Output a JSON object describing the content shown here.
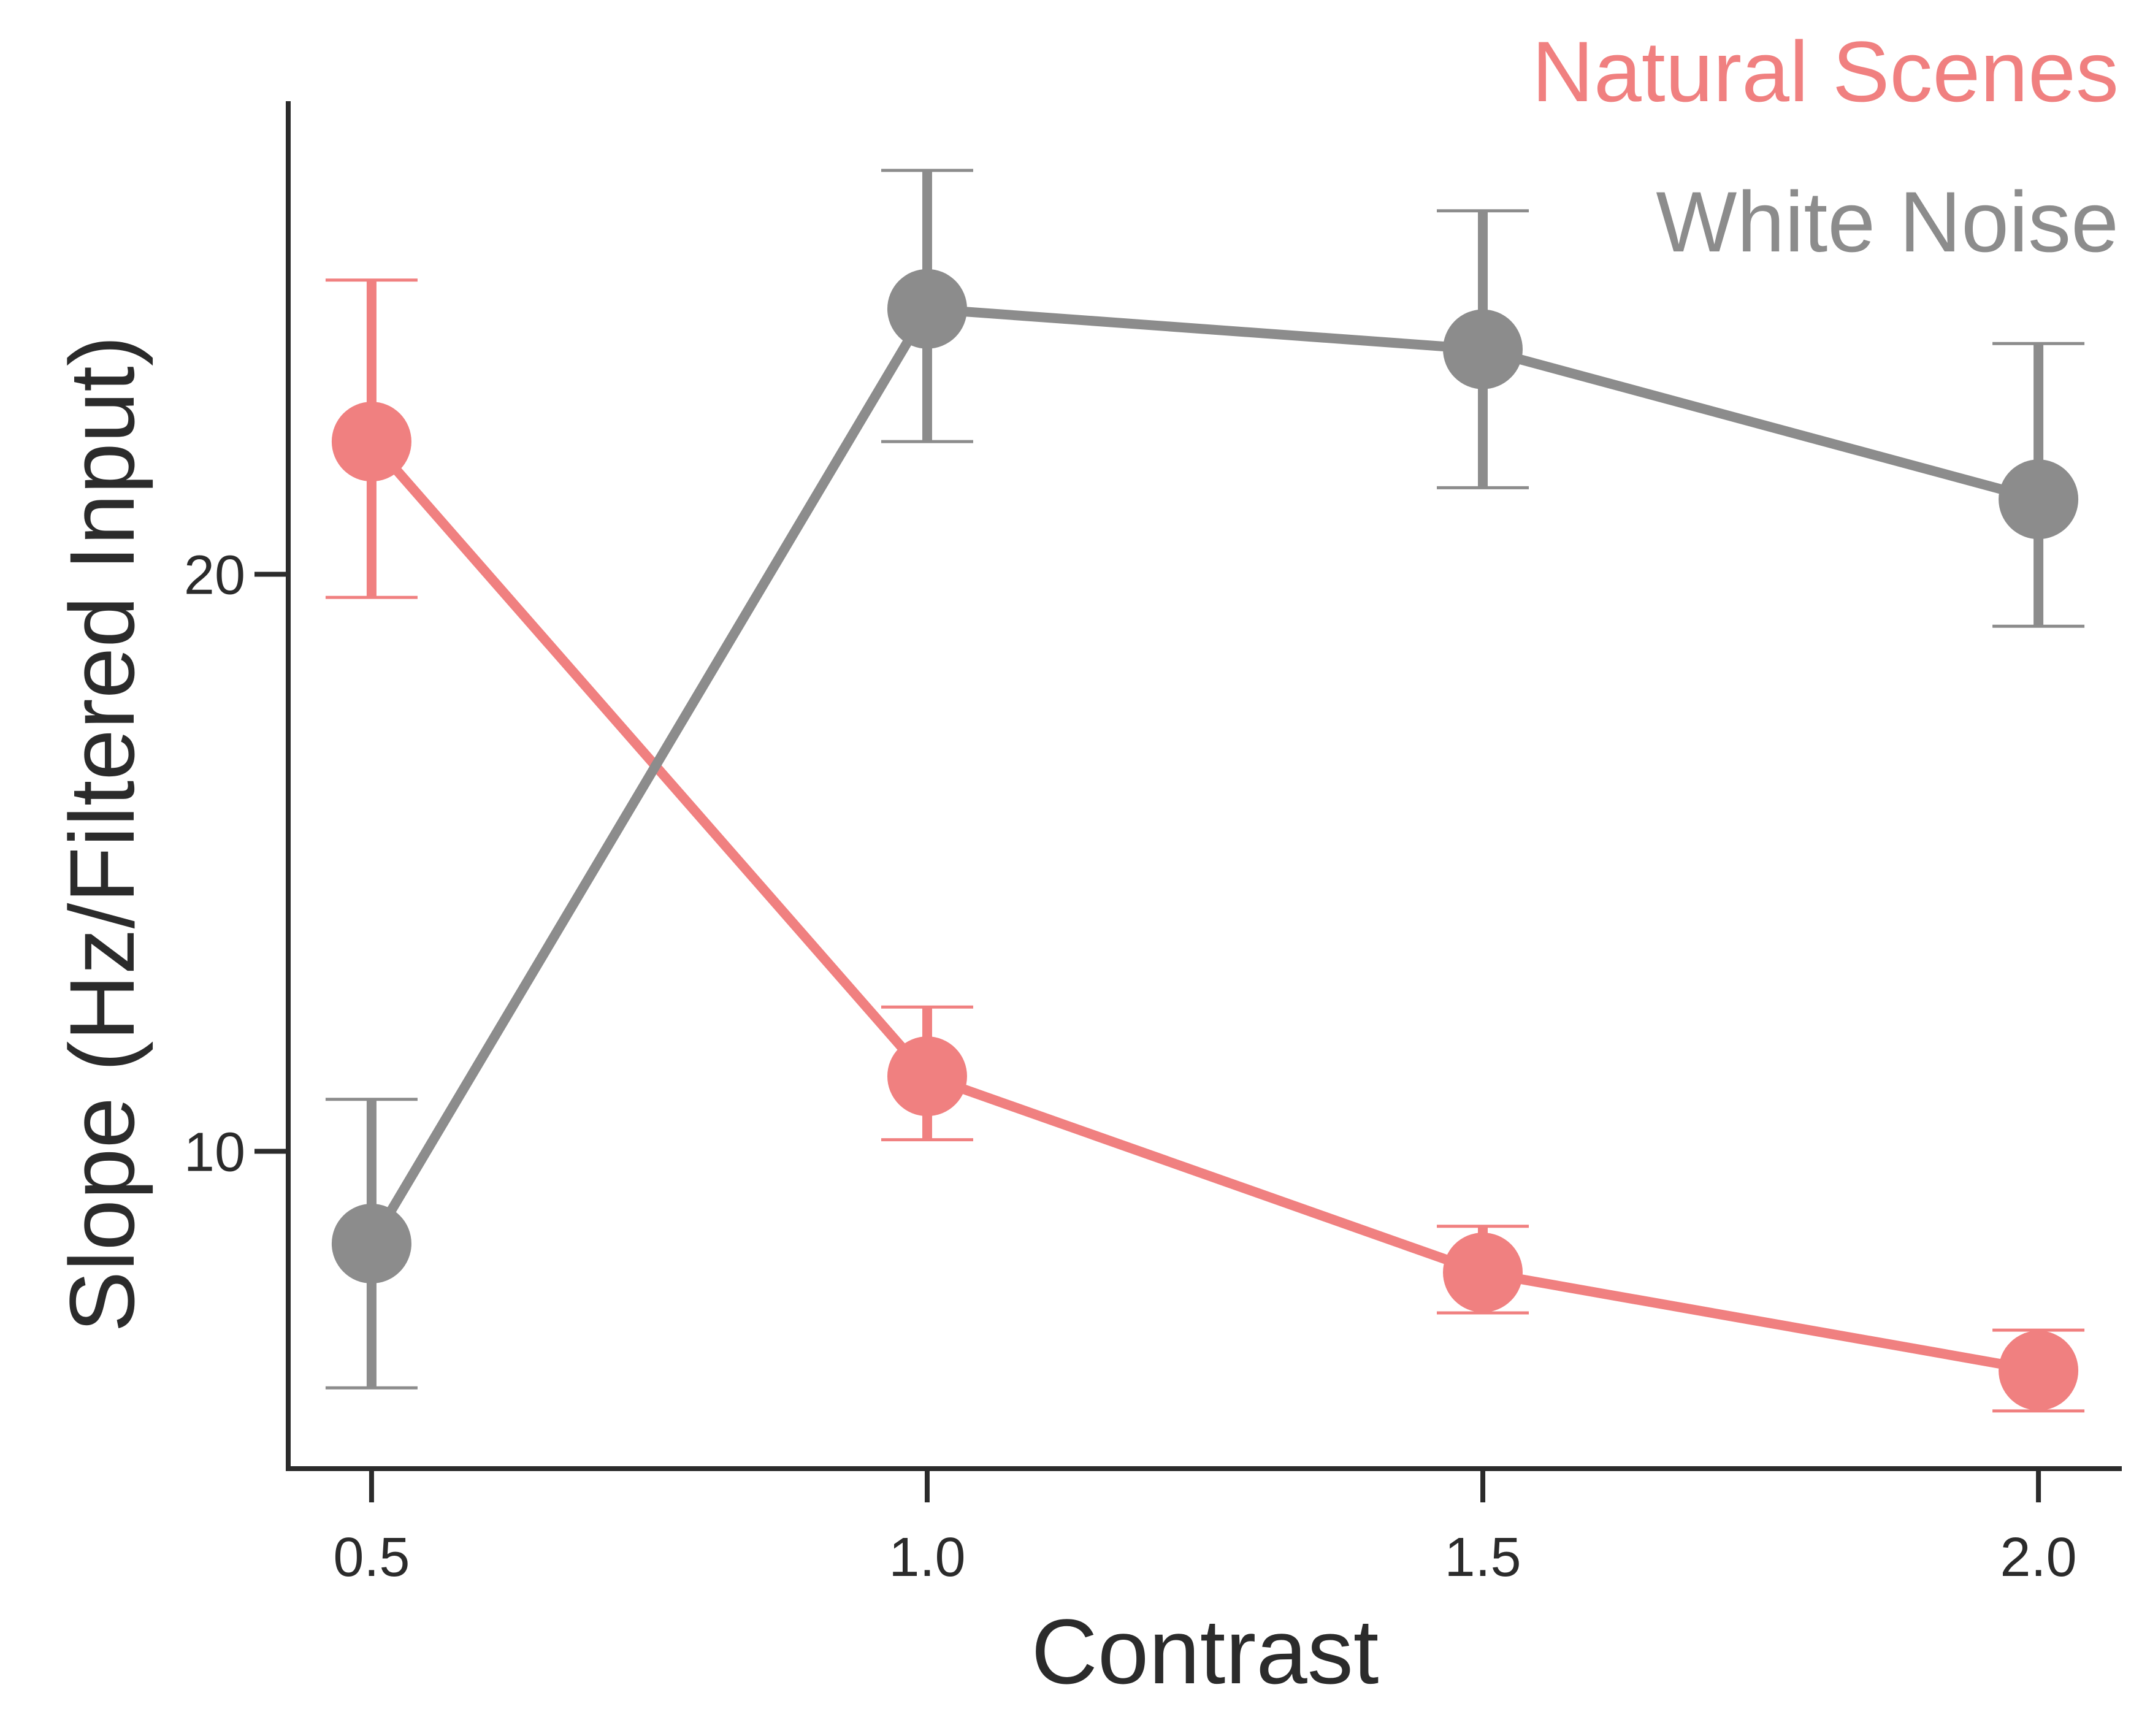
{
  "chart_data": {
    "type": "line",
    "xlabel": "Contrast",
    "ylabel": "Slope (Hz/Filtered Input)",
    "x": [
      0.5,
      1.0,
      1.5,
      2.0
    ],
    "xticks": [
      0.5,
      1.0,
      1.5,
      2.0
    ],
    "xtick_labels": [
      "0.5",
      "1.0",
      "1.5",
      "2.0"
    ],
    "yticks": [
      10,
      20
    ],
    "ytick_labels": [
      "10",
      "20"
    ],
    "xlim": [
      0.425,
      2.075
    ],
    "ylim": [
      4.5,
      28.2
    ],
    "grid": false,
    "legend_position": "top-right",
    "series": [
      {
        "name": "Natural Scenes",
        "color": "#f08080",
        "values": [
          22.3,
          11.3,
          7.9,
          6.2
        ],
        "err_low": [
          19.6,
          10.2,
          7.2,
          5.5
        ],
        "err_high": [
          25.1,
          12.5,
          8.7,
          6.9
        ]
      },
      {
        "name": "White Noise",
        "color": "#8c8c8c",
        "values": [
          8.4,
          24.6,
          23.9,
          21.3
        ],
        "err_low": [
          5.9,
          22.3,
          21.5,
          19.1
        ],
        "err_high": [
          10.9,
          27.0,
          26.3,
          24.0
        ]
      }
    ]
  }
}
